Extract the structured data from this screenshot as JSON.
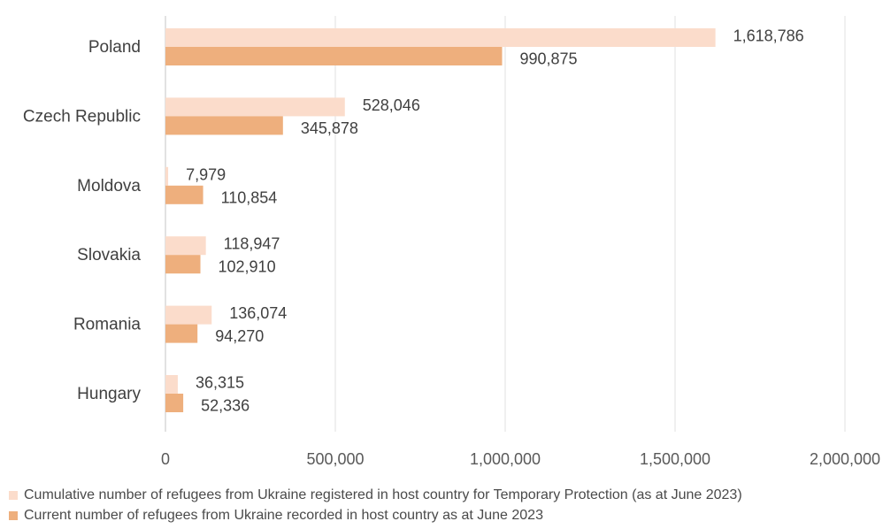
{
  "chart_data": {
    "type": "bar",
    "orientation": "horizontal",
    "categories": [
      "Poland",
      "Czech Republic",
      "Moldova",
      "Slovakia",
      "Romania",
      "Hungary"
    ],
    "series": [
      {
        "name": "Cumulative number of refugees from Ukraine registered in host country for Temporary Protection (as at June 2023)",
        "values": [
          1618786,
          528046,
          7979,
          118947,
          136074,
          36315
        ],
        "labels": [
          "1,618,786",
          "528,046",
          "7,979",
          "118,947",
          "136,074",
          "36,315"
        ],
        "color": "#fbdccb"
      },
      {
        "name": "Current number of refugees from Ukraine recorded in host country as at June 2023",
        "values": [
          990875,
          345878,
          110854,
          102910,
          94270,
          52336
        ],
        "labels": [
          "990,875",
          "345,878",
          "110,854",
          "102,910",
          "94,270",
          "52,336"
        ],
        "color": "#eeaf7d"
      }
    ],
    "x_ticks": [
      0,
      500000,
      1000000,
      1500000,
      2000000
    ],
    "x_tick_labels": [
      "0",
      "500,000",
      "1,000,000",
      "1,500,000",
      "2,000,000"
    ],
    "xlim": [
      0,
      2000000
    ],
    "grid": "vertical",
    "legend_position": "bottom"
  }
}
